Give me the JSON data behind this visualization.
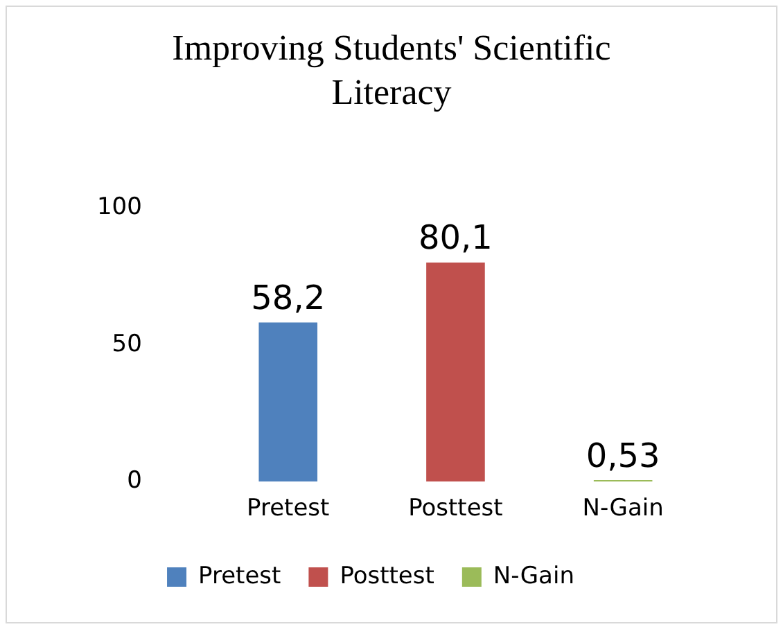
{
  "chart_data": {
    "type": "bar",
    "title": "Improving Students' Scientific Literacy",
    "categories": [
      "Pretest",
      "Posttest",
      "N-Gain"
    ],
    "series": [
      {
        "name": "Pretest",
        "color": "#4f81bd",
        "values": [
          58.2,
          null,
          null
        ],
        "value_labels": [
          "58,2",
          null,
          null
        ]
      },
      {
        "name": "Posttest",
        "color": "#c0504d",
        "values": [
          null,
          80.1,
          null
        ],
        "value_labels": [
          null,
          "80,1",
          null
        ]
      },
      {
        "name": "N-Gain",
        "color": "#9bbb59",
        "values": [
          null,
          null,
          0.53
        ],
        "value_labels": [
          null,
          null,
          "0,53"
        ]
      }
    ],
    "ylim": [
      0,
      100
    ],
    "yticks": [
      0,
      50,
      100
    ],
    "grid": false,
    "legend": "bottom"
  }
}
